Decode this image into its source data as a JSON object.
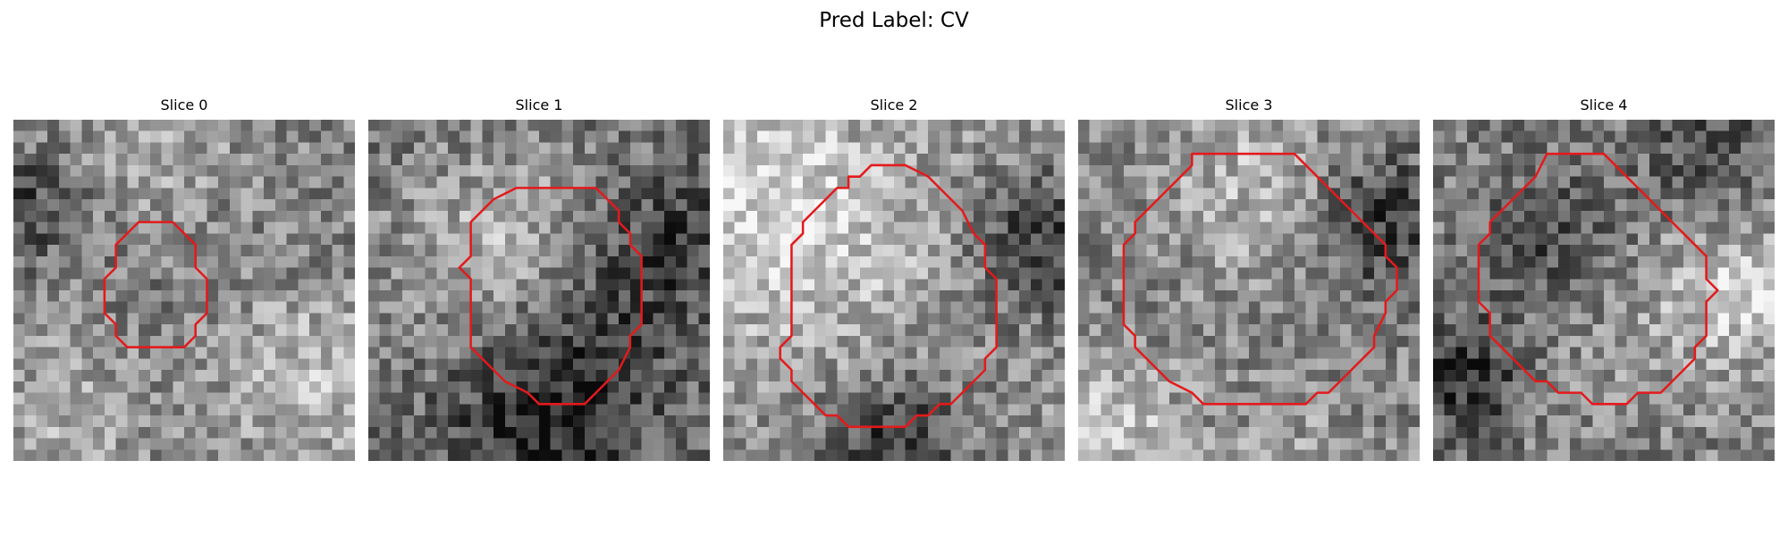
{
  "figure": {
    "title": "Pred Label: CV"
  },
  "colors": {
    "contour": "#e31a1c",
    "background": "#ffffff"
  },
  "slices": [
    {
      "title": "Slice 0",
      "pattern": {
        "seed": 11,
        "base": 0.52,
        "blobs": [
          [
            0.5,
            0.5,
            -0.05,
            0.3
          ],
          [
            0.85,
            0.75,
            0.25,
            0.18
          ],
          [
            0.15,
            0.9,
            0.15,
            0.2
          ],
          [
            0.05,
            0.25,
            -0.25,
            0.12
          ],
          [
            0.4,
            0.1,
            0.15,
            0.2
          ]
        ]
      },
      "contour": [
        [
          12,
          9
        ],
        [
          14,
          9
        ],
        [
          16,
          11
        ],
        [
          16,
          13
        ],
        [
          17,
          14
        ],
        [
          17,
          17
        ],
        [
          16,
          18
        ],
        [
          16,
          19
        ],
        [
          15,
          20
        ],
        [
          10,
          20
        ],
        [
          9,
          19
        ],
        [
          9,
          18
        ],
        [
          8,
          17
        ],
        [
          8,
          14
        ],
        [
          9,
          13
        ],
        [
          9,
          11
        ],
        [
          11,
          9
        ]
      ]
    },
    {
      "title": "Slice 1",
      "pattern": {
        "seed": 23,
        "base": 0.45,
        "blobs": [
          [
            0.42,
            0.38,
            0.3,
            0.2
          ],
          [
            0.65,
            0.55,
            -0.2,
            0.2
          ],
          [
            0.5,
            0.9,
            -0.3,
            0.2
          ],
          [
            0.9,
            0.35,
            -0.2,
            0.12
          ],
          [
            0.1,
            0.5,
            0.05,
            0.25
          ]
        ]
      },
      "contour": [
        [
          14,
          6
        ],
        [
          20,
          6
        ],
        [
          22,
          8
        ],
        [
          22,
          9
        ],
        [
          23,
          10
        ],
        [
          23,
          11
        ],
        [
          24,
          12
        ],
        [
          24,
          18
        ],
        [
          23,
          19
        ],
        [
          23,
          20
        ],
        [
          22,
          22
        ],
        [
          20,
          24
        ],
        [
          19,
          25
        ],
        [
          15,
          25
        ],
        [
          14,
          24
        ],
        [
          12,
          23
        ],
        [
          10,
          21
        ],
        [
          9,
          20
        ],
        [
          9,
          14
        ],
        [
          8,
          13
        ],
        [
          9,
          12
        ],
        [
          9,
          9
        ],
        [
          10,
          8
        ],
        [
          11,
          7
        ],
        [
          13,
          6
        ]
      ]
    },
    {
      "title": "Slice 2",
      "pattern": {
        "seed": 37,
        "base": 0.58,
        "blobs": [
          [
            0.3,
            0.4,
            0.2,
            0.25
          ],
          [
            0.6,
            0.7,
            -0.05,
            0.25
          ],
          [
            0.95,
            0.35,
            -0.35,
            0.15
          ],
          [
            0.5,
            0.97,
            -0.35,
            0.15
          ],
          [
            0.05,
            0.1,
            0.2,
            0.2
          ]
        ]
      },
      "contour": [
        [
          11,
          5
        ],
        [
          12,
          5
        ],
        [
          13,
          4
        ],
        [
          16,
          4
        ],
        [
          18,
          5
        ],
        [
          19,
          6
        ],
        [
          20,
          7
        ],
        [
          21,
          8
        ],
        [
          22,
          10
        ],
        [
          23,
          11
        ],
        [
          23,
          13
        ],
        [
          24,
          14
        ],
        [
          24,
          20
        ],
        [
          23,
          21
        ],
        [
          23,
          22
        ],
        [
          22,
          23
        ],
        [
          21,
          24
        ],
        [
          20,
          25
        ],
        [
          19,
          25
        ],
        [
          18,
          26
        ],
        [
          17,
          26
        ],
        [
          16,
          27
        ],
        [
          11,
          27
        ],
        [
          10,
          26
        ],
        [
          9,
          26
        ],
        [
          8,
          25
        ],
        [
          7,
          24
        ],
        [
          6,
          23
        ],
        [
          6,
          22
        ],
        [
          5,
          21
        ],
        [
          5,
          20
        ],
        [
          6,
          19
        ],
        [
          6,
          11
        ],
        [
          7,
          10
        ],
        [
          7,
          9
        ],
        [
          8,
          8
        ],
        [
          9,
          7
        ],
        [
          10,
          6
        ],
        [
          11,
          6
        ]
      ]
    },
    {
      "title": "Slice 3",
      "pattern": {
        "seed": 51,
        "base": 0.52,
        "blobs": [
          [
            0.5,
            0.2,
            0.2,
            0.2
          ],
          [
            0.5,
            0.55,
            -0.02,
            0.3
          ],
          [
            0.9,
            0.3,
            -0.3,
            0.15
          ],
          [
            0.1,
            0.9,
            0.25,
            0.15
          ],
          [
            0.6,
            0.95,
            0.1,
            0.15
          ]
        ]
      },
      "contour": [
        [
          10,
          3
        ],
        [
          19,
          3
        ],
        [
          21,
          5
        ],
        [
          22,
          6
        ],
        [
          23,
          7
        ],
        [
          24,
          8
        ],
        [
          25,
          9
        ],
        [
          26,
          10
        ],
        [
          27,
          11
        ],
        [
          27,
          12
        ],
        [
          28,
          13
        ],
        [
          28,
          15
        ],
        [
          27,
          16
        ],
        [
          27,
          17
        ],
        [
          26,
          19
        ],
        [
          26,
          20
        ],
        [
          25,
          21
        ],
        [
          24,
          22
        ],
        [
          23,
          23
        ],
        [
          22,
          24
        ],
        [
          21,
          24
        ],
        [
          20,
          25
        ],
        [
          11,
          25
        ],
        [
          10,
          24
        ],
        [
          8,
          23
        ],
        [
          7,
          22
        ],
        [
          6,
          21
        ],
        [
          5,
          20
        ],
        [
          5,
          19
        ],
        [
          4,
          18
        ],
        [
          4,
          16
        ],
        [
          4,
          11
        ],
        [
          5,
          10
        ],
        [
          5,
          9
        ],
        [
          6,
          8
        ],
        [
          7,
          7
        ],
        [
          8,
          6
        ],
        [
          9,
          5
        ],
        [
          10,
          4
        ]
      ]
    },
    {
      "title": "Slice 4",
      "pattern": {
        "seed": 67,
        "base": 0.5,
        "blobs": [
          [
            0.35,
            0.35,
            -0.25,
            0.15
          ],
          [
            0.55,
            0.55,
            0.1,
            0.25
          ],
          [
            0.1,
            0.75,
            -0.35,
            0.12
          ],
          [
            0.9,
            0.5,
            0.3,
            0.15
          ],
          [
            0.8,
            0.1,
            -0.2,
            0.15
          ]
        ]
      },
      "contour": [
        [
          10,
          3
        ],
        [
          15,
          3
        ],
        [
          16,
          4
        ],
        [
          17,
          5
        ],
        [
          18,
          6
        ],
        [
          19,
          7
        ],
        [
          20,
          8
        ],
        [
          21,
          9
        ],
        [
          22,
          10
        ],
        [
          23,
          11
        ],
        [
          24,
          12
        ],
        [
          24,
          14
        ],
        [
          25,
          15
        ],
        [
          24,
          16
        ],
        [
          24,
          19
        ],
        [
          23,
          20
        ],
        [
          23,
          21
        ],
        [
          22,
          22
        ],
        [
          21,
          23
        ],
        [
          20,
          24
        ],
        [
          18,
          24
        ],
        [
          17,
          25
        ],
        [
          14,
          25
        ],
        [
          13,
          24
        ],
        [
          11,
          24
        ],
        [
          10,
          23
        ],
        [
          9,
          23
        ],
        [
          8,
          22
        ],
        [
          7,
          21
        ],
        [
          6,
          20
        ],
        [
          5,
          19
        ],
        [
          5,
          17
        ],
        [
          4,
          16
        ],
        [
          4,
          11
        ],
        [
          5,
          10
        ],
        [
          5,
          9
        ],
        [
          6,
          8
        ],
        [
          7,
          7
        ],
        [
          8,
          6
        ],
        [
          9,
          5
        ]
      ]
    }
  ]
}
